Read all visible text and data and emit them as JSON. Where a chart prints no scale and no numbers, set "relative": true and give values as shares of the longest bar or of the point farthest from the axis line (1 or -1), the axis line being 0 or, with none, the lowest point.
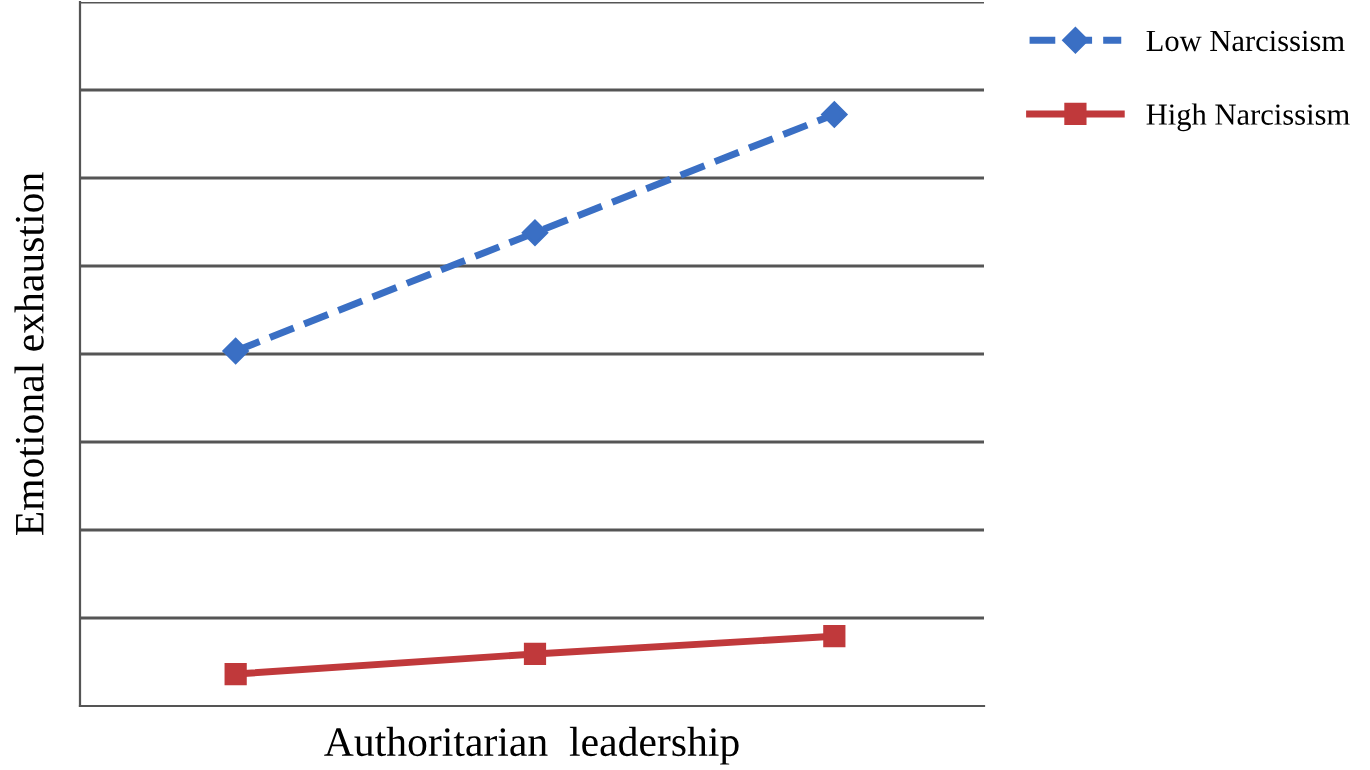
{
  "chart_data": {
    "type": "line",
    "relative": true,
    "xlabel": "Authoritarian  leadership",
    "ylabel": "Emotional exhaustion",
    "categories": [
      null,
      null,
      null
    ],
    "series": [
      {
        "name": "Low Narcissism",
        "color": "#3a6fc4",
        "values": [
          0.6,
          0.8,
          1.0
        ],
        "marker": "diamond",
        "line_style": "dashed"
      },
      {
        "name": "High Narcissism",
        "color": "#c0393b",
        "values": [
          0.054,
          0.088,
          0.118
        ],
        "marker": "square",
        "line_style": "solid"
      }
    ],
    "grid": "y",
    "legend": "top right"
  }
}
